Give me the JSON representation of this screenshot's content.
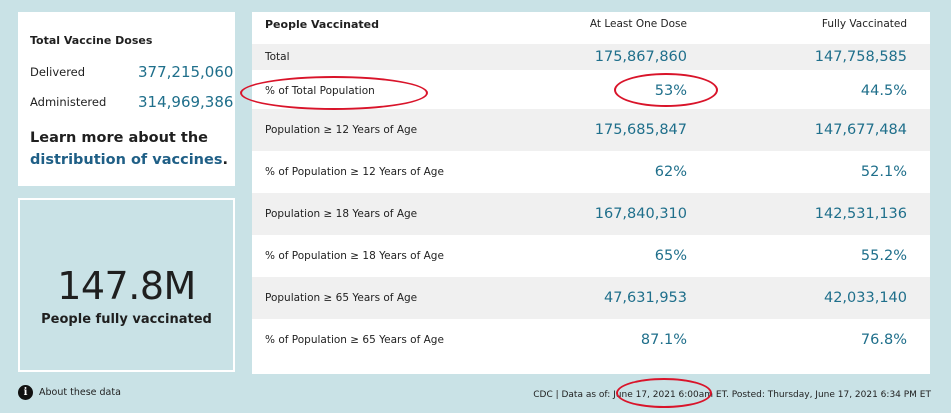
{
  "doses": {
    "title": "Total Vaccine Doses",
    "delivered_label": "Delivered",
    "delivered_value": "377,215,060",
    "administered_label": "Administered",
    "administered_value": "314,969,386",
    "learn_prefix": "Learn more about the",
    "learn_link": "distribution of vaccines",
    "learn_suffix": "."
  },
  "big": {
    "value": "147.8M",
    "caption": "People fully vaccinated"
  },
  "table": {
    "headers": [
      "People Vaccinated",
      "At Least One Dose",
      "Fully Vaccinated"
    ],
    "rows": [
      [
        "Total",
        "175,867,860",
        "147,758,585"
      ],
      [
        "% of Total Population",
        "53%",
        "44.5%"
      ],
      [
        "Population ≥ 12 Years of Age",
        "175,685,847",
        "147,677,484"
      ],
      [
        "% of Population ≥ 12 Years of Age",
        "62%",
        "52.1%"
      ],
      [
        "Population ≥ 18 Years of Age",
        "167,840,310",
        "142,531,136"
      ],
      [
        "% of Population ≥ 18 Years of Age",
        "65%",
        "55.2%"
      ],
      [
        "Population ≥ 65 Years of Age",
        "47,631,953",
        "42,033,140"
      ],
      [
        "% of Population ≥ 65 Years of Age",
        "87.1%",
        "76.8%"
      ]
    ]
  },
  "footer": {
    "about_icon": "info-icon",
    "about_label": "About these data",
    "source": "CDC | Data as of: June 17, 2021 6:00am ET. Posted: Thursday, June 17, 2021 6:34 PM ET"
  },
  "colors": {
    "background": "#c9e2e6",
    "value_text": "#1f6f8b",
    "link_text": "#1f5f86",
    "annotation": "#d9142a"
  }
}
